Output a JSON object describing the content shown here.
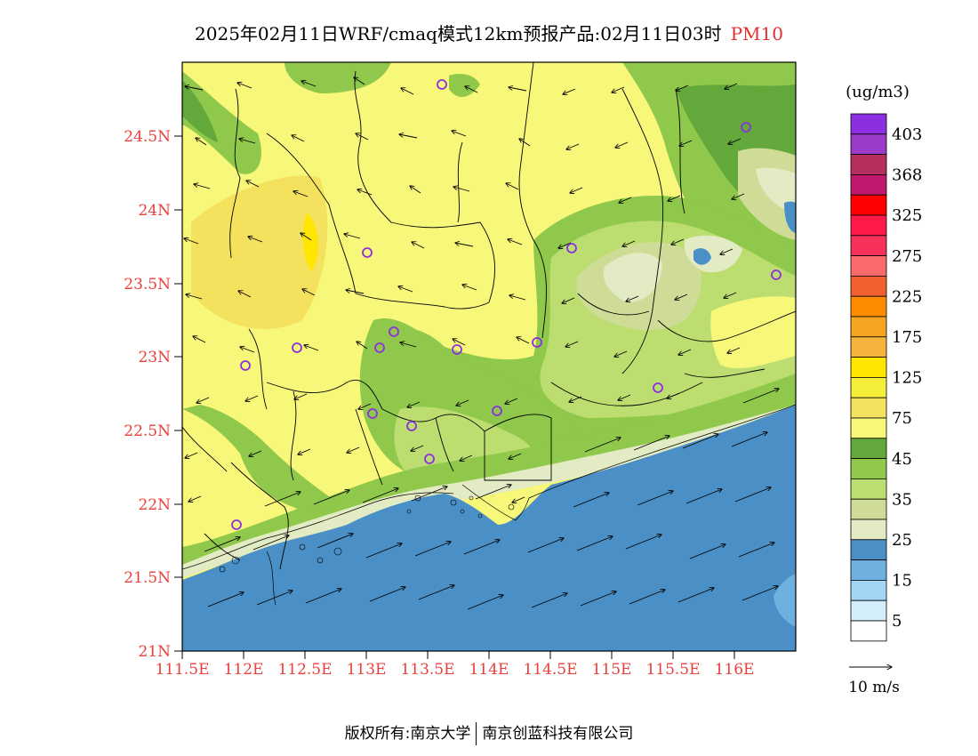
{
  "title": {
    "main": "2025年02月11日WRF/cmaq模式12km预报产品:02月11日03时",
    "variable": "PM10"
  },
  "map": {
    "lat_labels": [
      "24.5N",
      "24N",
      "23.5N",
      "23N",
      "22.5N",
      "22N",
      "21.5N",
      "21N"
    ],
    "lon_labels": [
      "111.5E",
      "112E",
      "112.5E",
      "113E",
      "113.5E",
      "114E",
      "114.5E",
      "115E",
      "115.5E",
      "116E"
    ],
    "label_color": "#e8413c",
    "ocean_color": "#4a8fc5"
  },
  "legend": {
    "unit": "(ug/m3)",
    "levels": [
      {
        "label": "403",
        "color": "#8b2fe0"
      },
      {
        "label": "",
        "color": "#9b3bc9"
      },
      {
        "label": "368",
        "color": "#b5305f"
      },
      {
        "label": "",
        "color": "#c0186c"
      },
      {
        "label": "325",
        "color": "#ff0000"
      },
      {
        "label": "",
        "color": "#ff1a4a"
      },
      {
        "label": "275",
        "color": "#f5315c"
      },
      {
        "label": "",
        "color": "#fb6a6a"
      },
      {
        "label": "225",
        "color": "#f06030"
      },
      {
        "label": "",
        "color": "#ff8c00"
      },
      {
        "label": "175",
        "color": "#f7a324"
      },
      {
        "label": "",
        "color": "#f5b43c"
      },
      {
        "label": "125",
        "color": "#ffe600"
      },
      {
        "label": "",
        "color": "#f5ef3a"
      },
      {
        "label": "75",
        "color": "#f4e25e"
      },
      {
        "label": "",
        "color": "#f7f77a"
      },
      {
        "label": "45",
        "color": "#63a83a"
      },
      {
        "label": "",
        "color": "#8fc84a"
      },
      {
        "label": "35",
        "color": "#bcde70"
      },
      {
        "label": "",
        "color": "#cfdc98"
      },
      {
        "label": "25",
        "color": "#e2ebc4"
      },
      {
        "label": "",
        "color": "#4a8fc5"
      },
      {
        "label": "15",
        "color": "#6eb1e1"
      },
      {
        "label": "",
        "color": "#a2d6f3"
      },
      {
        "label": "5",
        "color": "#d4edfa"
      },
      {
        "label": "",
        "color": "#ffffff"
      }
    ]
  },
  "wind_legend": {
    "label": "10 m/s"
  },
  "copyright": {
    "left": "版权所有:南京大学",
    "right": "南京创蓝科技有限公司"
  }
}
